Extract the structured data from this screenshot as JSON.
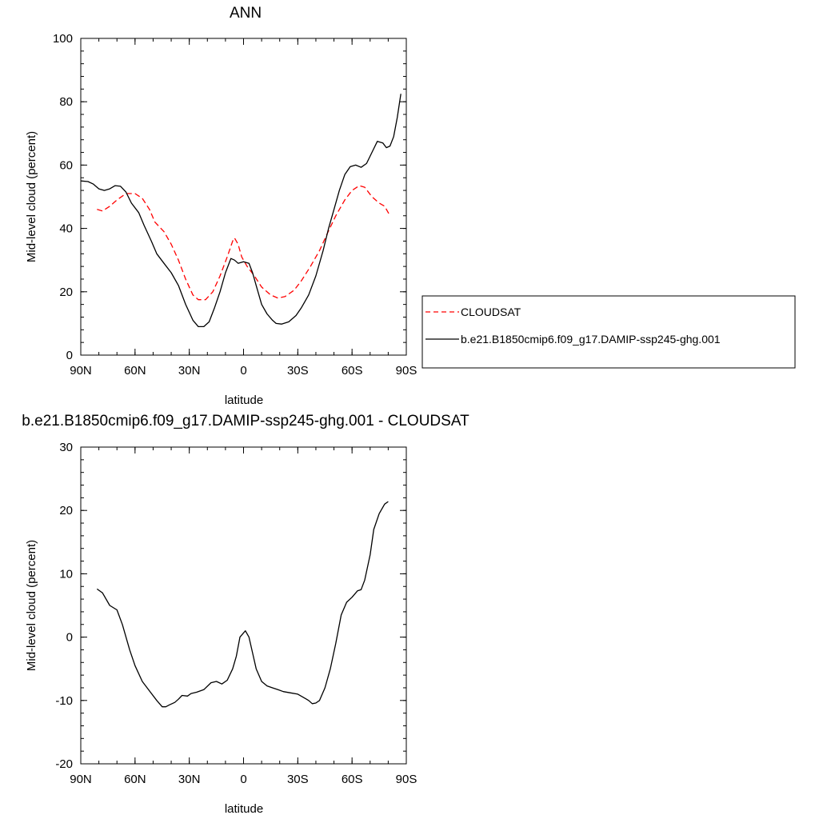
{
  "chart_data": [
    {
      "type": "line",
      "title": "ANN",
      "xlabel": "latitude",
      "ylabel": "Mid-level cloud (percent)",
      "xlim": [
        -90,
        90
      ],
      "ylim": [
        0,
        100
      ],
      "x_ticks": [
        {
          "value": -90,
          "label": "90N"
        },
        {
          "value": -60,
          "label": "60N"
        },
        {
          "value": -30,
          "label": "30N"
        },
        {
          "value": 0,
          "label": "0"
        },
        {
          "value": 30,
          "label": "30S"
        },
        {
          "value": 60,
          "label": "60S"
        },
        {
          "value": 90,
          "label": "90S"
        }
      ],
      "y_ticks": [
        {
          "value": 0,
          "label": "0"
        },
        {
          "value": 20,
          "label": "20"
        },
        {
          "value": 40,
          "label": "40"
        },
        {
          "value": 60,
          "label": "60"
        },
        {
          "value": 80,
          "label": "80"
        },
        {
          "value": 100,
          "label": "100"
        }
      ],
      "grid": false,
      "legend_position": "right",
      "series": [
        {
          "name": "CLOUDSAT",
          "color": "#ff0000",
          "dash": true,
          "points": [
            [
              -81,
              46
            ],
            [
              -78,
              45.5
            ],
            [
              -74,
              47
            ],
            [
              -70,
              49
            ],
            [
              -65,
              51
            ],
            [
              -60,
              51
            ],
            [
              -56,
              49.5
            ],
            [
              -52,
              46
            ],
            [
              -49,
              42
            ],
            [
              -44,
              39
            ],
            [
              -40,
              35
            ],
            [
              -36,
              30
            ],
            [
              -32,
              24
            ],
            [
              -28,
              19
            ],
            [
              -25,
              17.5
            ],
            [
              -21,
              17.5
            ],
            [
              -17,
              20
            ],
            [
              -13,
              25
            ],
            [
              -9,
              31
            ],
            [
              -6,
              36
            ],
            [
              -5,
              37
            ],
            [
              -3,
              35
            ],
            [
              -1,
              31
            ],
            [
              2,
              28
            ],
            [
              6,
              25
            ],
            [
              10,
              21.5
            ],
            [
              15,
              19
            ],
            [
              19,
              18
            ],
            [
              23,
              18.5
            ],
            [
              28,
              20.5
            ],
            [
              32,
              23.5
            ],
            [
              37,
              28
            ],
            [
              42,
              33
            ],
            [
              46,
              38
            ],
            [
              51,
              44
            ],
            [
              56,
              49
            ],
            [
              60,
              52
            ],
            [
              64,
              53.5
            ],
            [
              67,
              53
            ],
            [
              71,
              50
            ],
            [
              75,
              48
            ],
            [
              78,
              47
            ],
            [
              80,
              45
            ],
            [
              81,
              44
            ]
          ]
        },
        {
          "name": "b.e21.B1850cmip6.f09_g17.DAMIP-ssp245-ghg.001",
          "color": "#000000",
          "dash": false,
          "points": [
            [
              -90,
              55
            ],
            [
              -86,
              54.8
            ],
            [
              -83,
              54
            ],
            [
              -80,
              52.5
            ],
            [
              -77,
              52
            ],
            [
              -74,
              52.5
            ],
            [
              -71,
              53.5
            ],
            [
              -68,
              53.3
            ],
            [
              -65,
              51.5
            ],
            [
              -62,
              48
            ],
            [
              -58,
              45
            ],
            [
              -55,
              41
            ],
            [
              -51,
              36
            ],
            [
              -48,
              32
            ],
            [
              -44,
              29
            ],
            [
              -40,
              26
            ],
            [
              -36,
              22
            ],
            [
              -32,
              16
            ],
            [
              -28,
              11
            ],
            [
              -25,
              9
            ],
            [
              -22,
              9
            ],
            [
              -19,
              10.5
            ],
            [
              -16,
              15
            ],
            [
              -13,
              20
            ],
            [
              -10,
              26
            ],
            [
              -7,
              30.5
            ],
            [
              -5,
              30
            ],
            [
              -3,
              29
            ],
            [
              0,
              29.5
            ],
            [
              3,
              29
            ],
            [
              5,
              26
            ],
            [
              7,
              22
            ],
            [
              10,
              16
            ],
            [
              13,
              13
            ],
            [
              16,
              11
            ],
            [
              18,
              10
            ],
            [
              21,
              9.8
            ],
            [
              25,
              10.5
            ],
            [
              29,
              12.5
            ],
            [
              32,
              15
            ],
            [
              36,
              19
            ],
            [
              40,
              25
            ],
            [
              44,
              33
            ],
            [
              47,
              40
            ],
            [
              50,
              46
            ],
            [
              53,
              52
            ],
            [
              56,
              57
            ],
            [
              59,
              59.5
            ],
            [
              62,
              60
            ],
            [
              65,
              59.3
            ],
            [
              68,
              60.5
            ],
            [
              71,
              64
            ],
            [
              74,
              67.5
            ],
            [
              77,
              67
            ],
            [
              79,
              65.5
            ],
            [
              81,
              66
            ],
            [
              83,
              69
            ],
            [
              85,
              75
            ],
            [
              87,
              82.5
            ]
          ]
        }
      ]
    },
    {
      "type": "line",
      "title": "b.e21.B1850cmip6.f09_g17.DAMIP-ssp245-ghg.001 - CLOUDSAT",
      "xlabel": "latitude",
      "ylabel": "Mid-level cloud (percent)",
      "xlim": [
        -90,
        90
      ],
      "ylim": [
        -20,
        30
      ],
      "x_ticks": [
        {
          "value": -90,
          "label": "90N"
        },
        {
          "value": -60,
          "label": "60N"
        },
        {
          "value": -30,
          "label": "30N"
        },
        {
          "value": 0,
          "label": "0"
        },
        {
          "value": 30,
          "label": "30S"
        },
        {
          "value": 60,
          "label": "60S"
        },
        {
          "value": 90,
          "label": "90S"
        }
      ],
      "y_ticks": [
        {
          "value": -20,
          "label": "-20"
        },
        {
          "value": -10,
          "label": "-10"
        },
        {
          "value": 0,
          "label": "0"
        },
        {
          "value": 10,
          "label": "10"
        },
        {
          "value": 20,
          "label": "20"
        },
        {
          "value": 30,
          "label": "30"
        }
      ],
      "grid": false,
      "series": [
        {
          "color": "#000000",
          "dash": false,
          "points": [
            [
              -81,
              7.6
            ],
            [
              -78,
              7
            ],
            [
              -74,
              5
            ],
            [
              -70,
              4.3
            ],
            [
              -67,
              2
            ],
            [
              -63,
              -2
            ],
            [
              -60,
              -4.5
            ],
            [
              -56,
              -7
            ],
            [
              -52,
              -8.5
            ],
            [
              -48,
              -10
            ],
            [
              -45,
              -11
            ],
            [
              -43,
              -11
            ],
            [
              -41,
              -10.7
            ],
            [
              -38,
              -10.3
            ],
            [
              -36,
              -9.8
            ],
            [
              -34,
              -9.2
            ],
            [
              -31,
              -9.3
            ],
            [
              -29,
              -8.9
            ],
            [
              -26,
              -8.7
            ],
            [
              -22,
              -8.3
            ],
            [
              -18,
              -7.2
            ],
            [
              -15,
              -7
            ],
            [
              -12,
              -7.4
            ],
            [
              -9,
              -6.8
            ],
            [
              -6,
              -5
            ],
            [
              -4,
              -3
            ],
            [
              -2,
              0
            ],
            [
              1,
              1
            ],
            [
              3,
              0
            ],
            [
              5,
              -2.5
            ],
            [
              7,
              -5
            ],
            [
              10,
              -7
            ],
            [
              13,
              -7.7
            ],
            [
              16,
              -8
            ],
            [
              19,
              -8.3
            ],
            [
              22,
              -8.6
            ],
            [
              26,
              -8.8
            ],
            [
              30,
              -9
            ],
            [
              33,
              -9.5
            ],
            [
              36,
              -10
            ],
            [
              38,
              -10.5
            ],
            [
              40,
              -10.4
            ],
            [
              42,
              -10
            ],
            [
              45,
              -8
            ],
            [
              48,
              -5
            ],
            [
              51,
              -1
            ],
            [
              54,
              3.5
            ],
            [
              57,
              5.5
            ],
            [
              60,
              6.3
            ],
            [
              63,
              7.3
            ],
            [
              65,
              7.5
            ],
            [
              67,
              9
            ],
            [
              70,
              13
            ],
            [
              72,
              17
            ],
            [
              75,
              19.5
            ],
            [
              78,
              21
            ],
            [
              80,
              21.4
            ]
          ]
        }
      ]
    }
  ]
}
